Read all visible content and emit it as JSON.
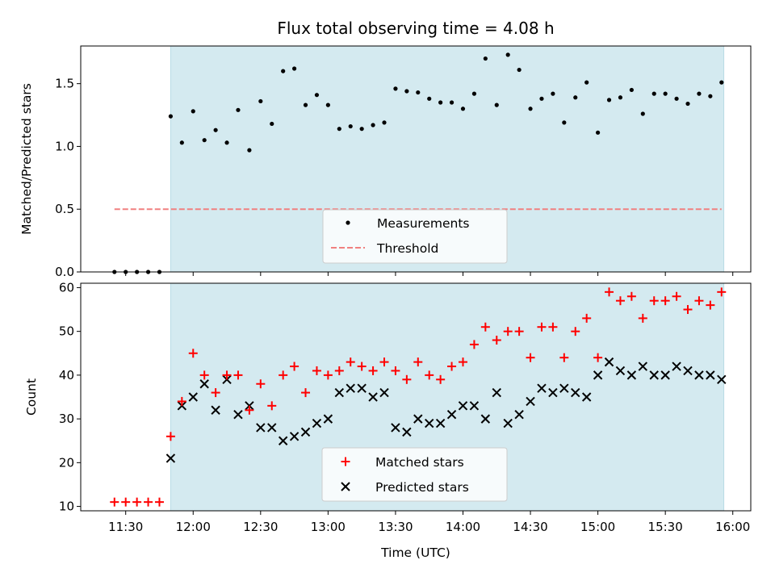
{
  "chart_data": [
    {
      "type": "scatter",
      "title": "Flux total observing time = 4.08 h",
      "xlabel": "",
      "ylabel": "Matched/Predicted stars",
      "ylim": [
        0,
        1.8
      ],
      "yticks": [
        "0.0",
        "0.5",
        "1.0",
        "1.5"
      ],
      "shaded_region": {
        "from": "11:50",
        "to": "15:56",
        "color": "#d4eaf0"
      },
      "legend_position": "lower center",
      "series": [
        {
          "name": "Measurements",
          "marker": "dot",
          "color": "#000000",
          "x": [
            "11:25",
            "11:30",
            "11:35",
            "11:40",
            "11:45",
            "11:50",
            "11:55",
            "12:00",
            "12:05",
            "12:10",
            "12:15",
            "12:20",
            "12:25",
            "12:30",
            "12:35",
            "12:40",
            "12:45",
            "12:50",
            "12:55",
            "13:00",
            "13:05",
            "13:10",
            "13:15",
            "13:20",
            "13:25",
            "13:30",
            "13:35",
            "13:40",
            "13:45",
            "13:50",
            "13:55",
            "14:00",
            "14:05",
            "14:10",
            "14:15",
            "14:20",
            "14:25",
            "14:30",
            "14:35",
            "14:40",
            "14:45",
            "14:50",
            "14:55",
            "15:00",
            "15:05",
            "15:10",
            "15:15",
            "15:20",
            "15:25",
            "15:30",
            "15:35",
            "15:40",
            "15:45",
            "15:50",
            "15:55"
          ],
          "y": [
            0.0,
            0.0,
            0.0,
            0.0,
            0.0,
            1.24,
            1.03,
            1.28,
            1.05,
            1.13,
            1.03,
            1.29,
            0.97,
            1.36,
            1.18,
            1.6,
            1.62,
            1.33,
            1.41,
            1.33,
            1.14,
            1.16,
            1.14,
            1.17,
            1.19,
            1.46,
            1.44,
            1.43,
            1.38,
            1.35,
            1.35,
            1.3,
            1.42,
            1.7,
            1.33,
            1.73,
            1.61,
            1.3,
            1.38,
            1.42,
            1.19,
            1.39,
            1.51,
            1.11,
            1.37,
            1.39,
            1.45,
            1.26,
            1.42,
            1.42,
            1.38,
            1.34,
            1.42,
            1.4,
            1.51
          ]
        },
        {
          "name": "Threshold",
          "marker": "dashed-line",
          "color": "#f08080",
          "x": [
            "11:25",
            "15:55"
          ],
          "y": [
            0.5,
            0.5
          ]
        }
      ]
    },
    {
      "type": "scatter",
      "xlabel": "Time (UTC)",
      "ylabel": "Count",
      "ylim": [
        9,
        61
      ],
      "yticks": [
        "10",
        "20",
        "30",
        "40",
        "50",
        "60"
      ],
      "xticks": [
        "11:30",
        "12:00",
        "12:30",
        "13:00",
        "13:30",
        "14:00",
        "14:30",
        "15:00",
        "15:30",
        "16:00"
      ],
      "shaded_region": {
        "from": "11:50",
        "to": "15:56",
        "color": "#d4eaf0"
      },
      "legend_position": "lower center",
      "series": [
        {
          "name": "Matched stars",
          "marker": "plus",
          "color": "#ff0000",
          "x": [
            "11:25",
            "11:30",
            "11:35",
            "11:40",
            "11:45",
            "11:50",
            "11:55",
            "12:00",
            "12:05",
            "12:10",
            "12:15",
            "12:20",
            "12:25",
            "12:30",
            "12:35",
            "12:40",
            "12:45",
            "12:50",
            "12:55",
            "13:00",
            "13:05",
            "13:10",
            "13:15",
            "13:20",
            "13:25",
            "13:30",
            "13:35",
            "13:40",
            "13:45",
            "13:50",
            "13:55",
            "14:00",
            "14:05",
            "14:10",
            "14:15",
            "14:20",
            "14:25",
            "14:30",
            "14:35",
            "14:40",
            "14:45",
            "14:50",
            "14:55",
            "15:00",
            "15:05",
            "15:10",
            "15:15",
            "15:20",
            "15:25",
            "15:30",
            "15:35",
            "15:40",
            "15:45",
            "15:50",
            "15:55"
          ],
          "y": [
            11,
            11,
            11,
            11,
            11,
            26,
            34,
            45,
            40,
            36,
            40,
            40,
            32,
            38,
            33,
            40,
            42,
            36,
            41,
            40,
            41,
            43,
            42,
            41,
            43,
            41,
            39,
            43,
            40,
            39,
            42,
            43,
            47,
            51,
            48,
            50,
            50,
            44,
            51,
            51,
            44,
            50,
            53,
            44,
            59,
            57,
            58,
            53,
            57,
            57,
            58,
            55,
            57,
            56,
            59
          ]
        },
        {
          "name": "Predicted stars",
          "marker": "x",
          "color": "#000000",
          "x": [
            "11:50",
            "11:55",
            "12:00",
            "12:05",
            "12:10",
            "12:15",
            "12:20",
            "12:25",
            "12:30",
            "12:35",
            "12:40",
            "12:45",
            "12:50",
            "12:55",
            "13:00",
            "13:05",
            "13:10",
            "13:15",
            "13:20",
            "13:25",
            "13:30",
            "13:35",
            "13:40",
            "13:45",
            "13:50",
            "13:55",
            "14:00",
            "14:05",
            "14:10",
            "14:15",
            "14:20",
            "14:25",
            "14:30",
            "14:35",
            "14:40",
            "14:45",
            "14:50",
            "14:55",
            "15:00",
            "15:05",
            "15:10",
            "15:15",
            "15:20",
            "15:25",
            "15:30",
            "15:35",
            "15:40",
            "15:45",
            "15:50",
            "15:55"
          ],
          "y": [
            21,
            33,
            35,
            38,
            32,
            39,
            31,
            33,
            28,
            28,
            25,
            26,
            27,
            29,
            30,
            36,
            37,
            37,
            35,
            36,
            28,
            27,
            30,
            29,
            29,
            31,
            33,
            33,
            30,
            36,
            29,
            31,
            34,
            37,
            36,
            37,
            36,
            35,
            40,
            43,
            41,
            40,
            42,
            40,
            40,
            42,
            41,
            40,
            40,
            39
          ]
        }
      ]
    }
  ]
}
